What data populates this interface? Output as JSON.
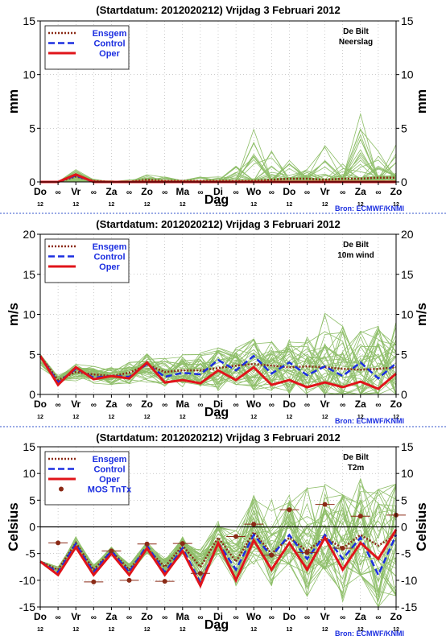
{
  "days": [
    "Do",
    "∞",
    "Vr",
    "∞",
    "Za",
    "∞",
    "Zo",
    "∞",
    "Ma",
    "∞",
    "Di",
    "∞",
    "Wo",
    "∞",
    "Do",
    "∞",
    "Vr",
    "∞",
    "Za",
    "∞",
    "Zo"
  ],
  "hours": [
    "12",
    "",
    "12",
    "",
    "12",
    "",
    "12",
    "",
    "12",
    "",
    "12",
    "",
    "12",
    "",
    "12",
    "",
    "12",
    "",
    "12",
    "",
    "12"
  ],
  "xlabel": "Dag",
  "source": "Bron: ECMWF/KNMI",
  "colors": {
    "ensgem": "#8b2a16",
    "control": "#1c2fe0",
    "oper": "#e0141a",
    "members": "#8fbf6a",
    "mos": "#8b2a16",
    "grid": "#999999",
    "frame": "#000000",
    "separator": "#3355cc",
    "legendtext": "#1c2fe0"
  },
  "chart_data": [
    {
      "type": "line",
      "title": "(Startdatum: 2012020212)   Vrijdag    3 Februari  2012",
      "ylabel": "mm",
      "ylim": [
        0,
        15
      ],
      "yticks": [
        0,
        5,
        10,
        15
      ],
      "location": "De Bilt",
      "variable": "Neerslag",
      "legend": [
        "Ensgem",
        "Control",
        "Oper"
      ],
      "x": [
        0,
        0.5,
        1,
        1.5,
        2,
        2.5,
        3,
        3.5,
        4,
        4.5,
        5,
        5.5,
        6,
        6.5,
        7,
        7.5,
        8,
        8.5,
        9,
        9.5,
        10
      ],
      "series": [
        {
          "name": "Ensgem",
          "values": [
            0,
            0,
            0.5,
            0.1,
            0,
            0,
            0.2,
            0.1,
            0.1,
            0.1,
            0.1,
            0.1,
            0.1,
            0.2,
            0.3,
            0.3,
            0.2,
            0.3,
            0.3,
            0.4,
            0.4
          ]
        },
        {
          "name": "Control",
          "values": [
            0,
            0,
            0.6,
            0,
            0,
            0,
            0,
            0,
            0,
            0,
            0,
            0,
            0,
            0,
            0,
            0,
            0,
            0,
            0,
            0,
            0
          ]
        },
        {
          "name": "Oper",
          "values": [
            0,
            0,
            0.7,
            0,
            0,
            0,
            0,
            0,
            0,
            0,
            0,
            0,
            0,
            0,
            0,
            0,
            0,
            0,
            0,
            0,
            0
          ]
        }
      ],
      "members_max": [
        0,
        0,
        1.2,
        0.3,
        0.1,
        0.2,
        0.8,
        0.5,
        0.4,
        0.5,
        0.5,
        1.5,
        5,
        3,
        2,
        1.5,
        4,
        2.5,
        7.2,
        3,
        3.5
      ]
    },
    {
      "type": "line",
      "title": "(Startdatum: 2012020212)   Vrijdag    3 Februari  2012",
      "ylabel": "m/s",
      "ylim": [
        0,
        20
      ],
      "yticks": [
        0,
        5,
        10,
        15,
        20
      ],
      "location": "De Bilt",
      "variable": "10m wind",
      "legend": [
        "Ensgem",
        "Control",
        "Oper"
      ],
      "x": [
        0,
        0.5,
        1,
        1.5,
        2,
        2.5,
        3,
        3.5,
        4,
        4.5,
        5,
        5.5,
        6,
        6.5,
        7,
        7.5,
        8,
        8.5,
        9,
        9.5,
        10
      ],
      "series": [
        {
          "name": "Ensgem",
          "values": [
            4.8,
            1.8,
            2.8,
            2.5,
            2.3,
            2.7,
            3.7,
            2.8,
            3.0,
            3.0,
            3.3,
            3.6,
            3.8,
            3.6,
            3.4,
            3.5,
            3.4,
            3.2,
            3.1,
            3.2,
            3.4
          ]
        },
        {
          "name": "Control",
          "values": [
            4.8,
            1.5,
            3.2,
            2.1,
            2.3,
            2.2,
            3.8,
            2.2,
            2.7,
            2.5,
            4.3,
            3.0,
            4.8,
            2.6,
            4.0,
            2.4,
            3.5,
            2.3,
            4.0,
            2.0,
            3.9
          ]
        },
        {
          "name": "Oper",
          "values": [
            4.8,
            1.2,
            3.4,
            1.9,
            2.3,
            2.0,
            4.0,
            1.5,
            1.8,
            1.4,
            3.0,
            1.8,
            3.4,
            1.2,
            1.8,
            0.9,
            1.5,
            0.9,
            1.6,
            0.7,
            2.6
          ]
        }
      ],
      "members_max": [
        5,
        3,
        4.5,
        4,
        3.5,
        4,
        5.5,
        5,
        5.5,
        6,
        7,
        6.5,
        7.5,
        7,
        7,
        8,
        10.5,
        8.5,
        9,
        8.5,
        9
      ]
    },
    {
      "type": "line",
      "title": "(Startdatum: 2012020212)   Vrijdag    3 Februari  2012",
      "ylabel": "Celsius",
      "ylim": [
        -15,
        15
      ],
      "yticks": [
        -15,
        -10,
        -5,
        0,
        5,
        10,
        15
      ],
      "location": "De Bilt",
      "variable": "T2m",
      "legend": [
        "Ensgem",
        "Control",
        "Oper",
        "MOS TnTx"
      ],
      "x": [
        0,
        0.5,
        1,
        1.5,
        2,
        2.5,
        3,
        3.5,
        4,
        4.5,
        5,
        5.5,
        6,
        6.5,
        7,
        7.5,
        8,
        8.5,
        9,
        9.5,
        10
      ],
      "series": [
        {
          "name": "Ensgem",
          "values": [
            -6.5,
            -8.0,
            -3.0,
            -8.0,
            -4.5,
            -8.0,
            -4.0,
            -7.5,
            -3.5,
            -7.5,
            -2.0,
            -6.5,
            -1.0,
            -5.0,
            -2.0,
            -4.5,
            -2.0,
            -4.0,
            -1.5,
            -3.5,
            -1.5
          ]
        },
        {
          "name": "Control",
          "values": [
            -6.5,
            -8.5,
            -3.2,
            -8.5,
            -4.5,
            -8.5,
            -3.5,
            -8.5,
            -4.0,
            -10.5,
            -3.0,
            -8.0,
            -1.5,
            -5.5,
            -1.5,
            -6.0,
            -1.5,
            -6.0,
            -2.0,
            -9.0,
            -1.5
          ]
        },
        {
          "name": "Oper",
          "values": [
            -6.5,
            -9.0,
            -3.8,
            -9.0,
            -5.0,
            -9.0,
            -4.0,
            -9.0,
            -4.5,
            -11.0,
            -3.0,
            -10.0,
            -2.5,
            -8.0,
            -3.0,
            -8.0,
            -2.0,
            -8.0,
            -3.0,
            -6.0,
            -0.5
          ]
        }
      ],
      "mos": [
        {
          "x": 0.5,
          "y": -3
        },
        {
          "x": 1.5,
          "y": -10.3
        },
        {
          "x": 2.0,
          "y": -4.5
        },
        {
          "x": 2.5,
          "y": -10
        },
        {
          "x": 3.0,
          "y": -3.2
        },
        {
          "x": 3.5,
          "y": -10.2
        },
        {
          "x": 4.0,
          "y": -3.1
        },
        {
          "x": 4.5,
          "y": -8.7
        },
        {
          "x": 5.5,
          "y": -1.8
        },
        {
          "x": 6.0,
          "y": 0.5
        },
        {
          "x": 6.5,
          "y": -5.3
        },
        {
          "x": 7.0,
          "y": 3.2
        },
        {
          "x": 7.5,
          "y": -4.8
        },
        {
          "x": 8.0,
          "y": 4.2
        },
        {
          "x": 8.5,
          "y": -4.0
        },
        {
          "x": 9.0,
          "y": 2.0
        },
        {
          "x": 10.0,
          "y": 2.2
        }
      ],
      "members_max": [
        -6,
        -7,
        0,
        -6,
        -3,
        -6,
        -2,
        -5,
        -1,
        -4,
        3,
        1,
        7,
        6,
        8,
        8,
        9,
        6,
        9,
        7,
        8
      ],
      "members_min": [
        -7,
        -9.5,
        -5,
        -10,
        -6,
        -10,
        -5.5,
        -10,
        -6,
        -12,
        -5,
        -11,
        -7,
        -11,
        -7,
        -13,
        -8,
        -14,
        -9,
        -15,
        -13
      ]
    }
  ]
}
